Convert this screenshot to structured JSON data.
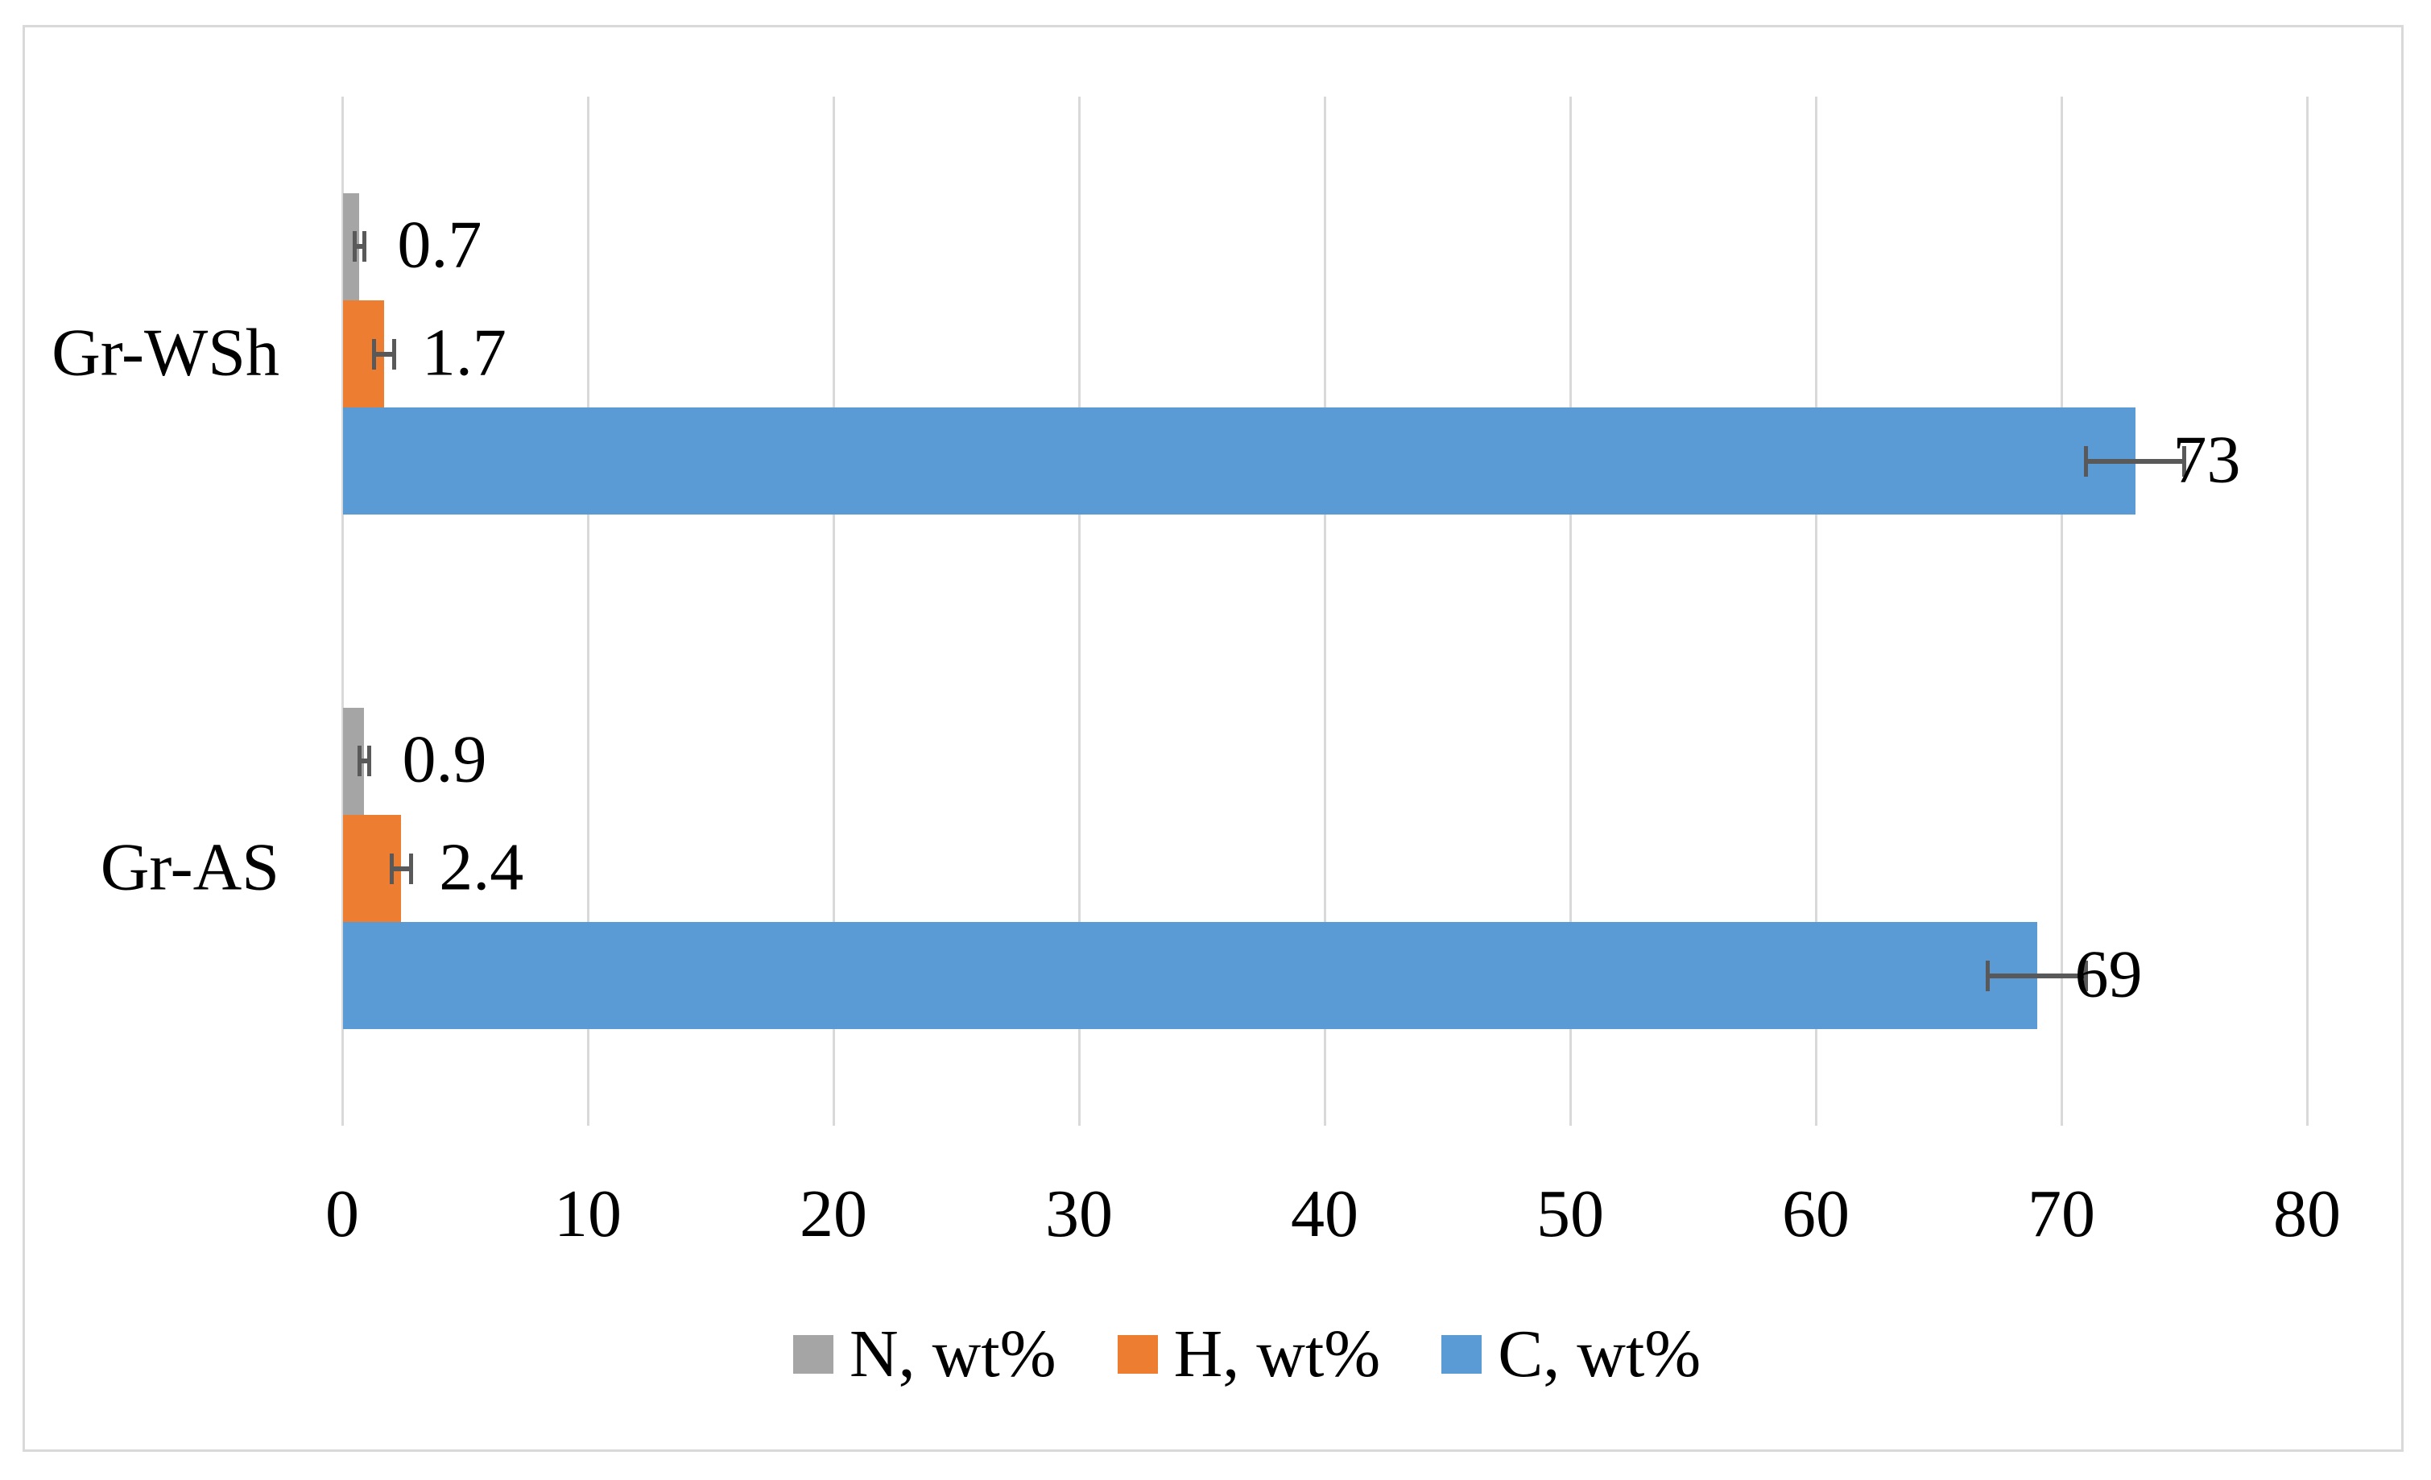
{
  "chart_data": {
    "type": "bar",
    "orientation": "horizontal",
    "title": "",
    "categories": [
      "Gr-WSh",
      "Gr-AS"
    ],
    "series": [
      {
        "name": "N, wt%",
        "color": "#A5A5A5",
        "values": [
          0.7,
          0.9
        ],
        "errors": [
          0.2,
          0.2
        ],
        "data_labels": [
          "0.7",
          "0.9"
        ]
      },
      {
        "name": "H, wt%",
        "color": "#ED7D31",
        "values": [
          1.7,
          2.4
        ],
        "errors": [
          0.4,
          0.4
        ],
        "data_labels": [
          "1.7",
          "2.4"
        ]
      },
      {
        "name": "C, wt%",
        "color": "#5B9BD5",
        "values": [
          73,
          69
        ],
        "errors": [
          2,
          2
        ],
        "data_labels": [
          "73",
          "69"
        ]
      }
    ],
    "x_axis": {
      "min": 0,
      "max": 80,
      "tick_step": 10,
      "tick_values": [
        0,
        10,
        20,
        30,
        40,
        50,
        60,
        70,
        80
      ],
      "tick_labels": [
        "0",
        "10",
        "20",
        "30",
        "40",
        "50",
        "60",
        "70",
        "80"
      ]
    },
    "grid": true,
    "legend_position": "bottom",
    "legend": [
      {
        "label": "N, wt%",
        "color": "#A5A5A5"
      },
      {
        "label": "H, wt%",
        "color": "#ED7D31"
      },
      {
        "label": "C, wt%",
        "color": "#5B9BD5"
      }
    ],
    "error_bar_color": "#595959",
    "gridline_color": "#D9D9D9",
    "frame_border_color": "#D9D9D9"
  }
}
